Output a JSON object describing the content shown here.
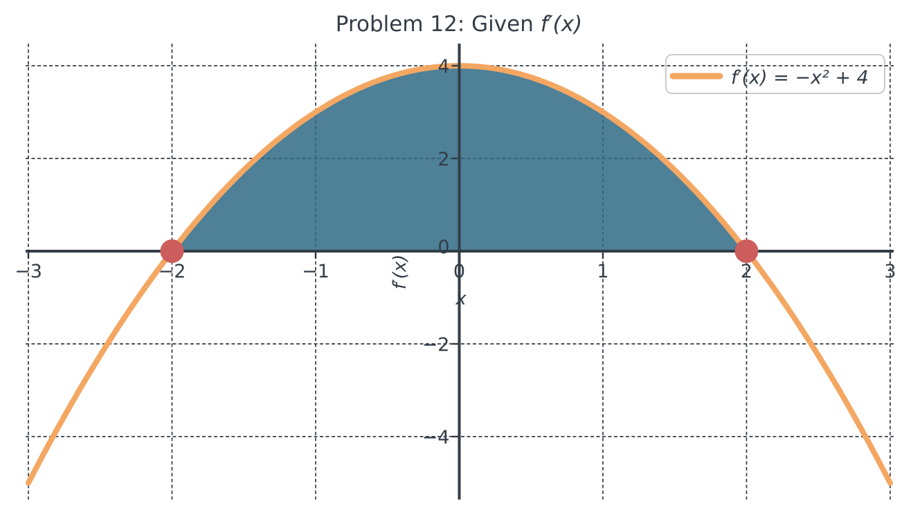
{
  "chart_data": {
    "type": "line",
    "title": {
      "prefix": "Problem 12: Given ",
      "math": "f′(x)"
    },
    "xlabel": "x",
    "ylabel": "f′(x)",
    "function": {
      "expression": "f′(x) = −x² + 4",
      "coeffs": {
        "a": -1,
        "c": 4
      },
      "domain": [
        -3,
        3
      ]
    },
    "samples": {
      "x": [
        -3,
        -2,
        -1,
        0,
        1,
        2,
        3
      ],
      "y": [
        -5,
        0,
        3,
        4,
        3,
        0,
        -5
      ]
    },
    "xticks": [
      -3,
      -2,
      -1,
      0,
      1,
      2,
      3
    ],
    "yticks": [
      -4,
      -2,
      0,
      2,
      4
    ],
    "xlim": [
      -3.02,
      3.02
    ],
    "ylim": [
      -5.36,
      4.48
    ],
    "grid": {
      "on": true,
      "style": "dashed"
    },
    "shaded_region": {
      "between": "curve and y=0",
      "from_x": -2,
      "to_x": 2,
      "opacity": 0.85
    },
    "markers": {
      "label": "roots",
      "points": [
        [
          -2,
          0
        ],
        [
          2,
          0
        ]
      ],
      "radius_px": 17
    },
    "legend": {
      "label": "f′(x) = −x² + 4",
      "position": "upper right"
    },
    "colors": {
      "curve": "#F4A762",
      "fill": "#2F6A85",
      "marker": "#CD5C5C",
      "text": "#333D47",
      "grid": "#333D47",
      "legend_border": "#CBCBCB",
      "legend_bg": "#FFFFFF"
    }
  }
}
